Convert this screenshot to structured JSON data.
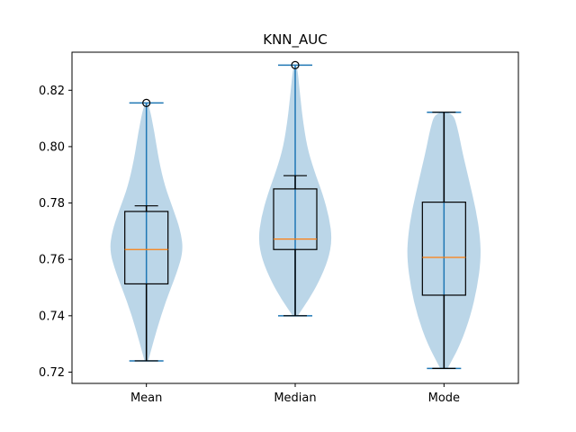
{
  "chart_data": {
    "type": "violin+box",
    "title": "KNN_AUC",
    "xlabel": "",
    "ylabel": "",
    "categories": [
      "Mean",
      "Median",
      "Mode"
    ],
    "ylim": [
      0.716,
      0.8335
    ],
    "yticks": [
      "0.72",
      "0.74",
      "0.76",
      "0.78",
      "0.80",
      "0.82"
    ],
    "grid": false,
    "colors": {
      "violin": "#1f77b4",
      "median": "#ff7f0e",
      "box": "#000000"
    },
    "groups": [
      {
        "name": "Mean",
        "violin": {
          "min": 0.724,
          "max": 0.8155,
          "profile": [
            [
              0.724,
              0.05
            ],
            [
              0.735,
              0.28
            ],
            [
              0.745,
              0.52
            ],
            [
              0.755,
              0.82
            ],
            [
              0.763,
              1.0
            ],
            [
              0.77,
              0.93
            ],
            [
              0.778,
              0.72
            ],
            [
              0.786,
              0.5
            ],
            [
              0.795,
              0.34
            ],
            [
              0.805,
              0.22
            ],
            [
              0.8155,
              0.06
            ]
          ]
        },
        "box": {
          "q1": 0.7513,
          "median": 0.7635,
          "q3": 0.777,
          "whisker_low": 0.724,
          "whisker_high": 0.779
        },
        "outliers": [
          0.8155
        ]
      },
      {
        "name": "Median",
        "violin": {
          "min": 0.74,
          "max": 0.8289,
          "profile": [
            [
              0.74,
              0.07
            ],
            [
              0.746,
              0.38
            ],
            [
              0.752,
              0.64
            ],
            [
              0.76,
              0.9
            ],
            [
              0.767,
              1.0
            ],
            [
              0.775,
              0.92
            ],
            [
              0.783,
              0.75
            ],
            [
              0.792,
              0.5
            ],
            [
              0.8,
              0.32
            ],
            [
              0.81,
              0.2
            ],
            [
              0.82,
              0.12
            ],
            [
              0.8289,
              0.05
            ]
          ]
        },
        "box": {
          "q1": 0.7635,
          "median": 0.7672,
          "q3": 0.785,
          "whisker_low": 0.74,
          "whisker_high": 0.7897
        },
        "outliers": [
          0.8289
        ]
      },
      {
        "name": "Mode",
        "violin": {
          "min": 0.7213,
          "max": 0.8122,
          "profile": [
            [
              0.7213,
              0.1
            ],
            [
              0.73,
              0.45
            ],
            [
              0.74,
              0.72
            ],
            [
              0.75,
              0.9
            ],
            [
              0.76,
              1.0
            ],
            [
              0.768,
              0.98
            ],
            [
              0.778,
              0.86
            ],
            [
              0.788,
              0.68
            ],
            [
              0.798,
              0.5
            ],
            [
              0.806,
              0.38
            ],
            [
              0.8122,
              0.24
            ]
          ]
        },
        "box": {
          "q1": 0.7473,
          "median": 0.7607,
          "q3": 0.7803,
          "whisker_low": 0.7213,
          "whisker_high": 0.8122
        },
        "outliers": []
      }
    ]
  }
}
